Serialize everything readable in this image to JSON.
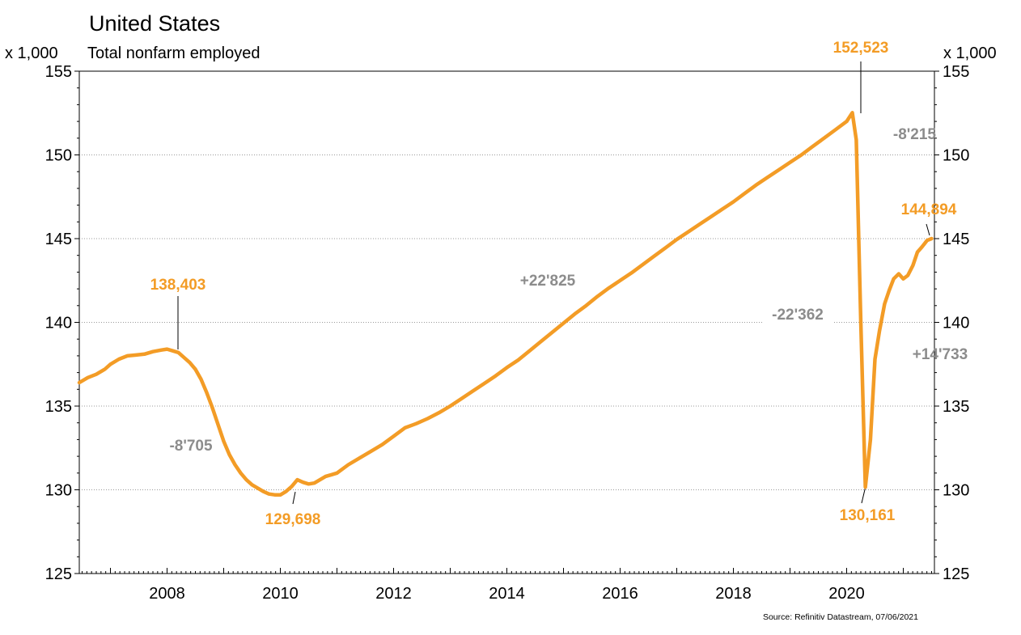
{
  "chart_data": {
    "type": "line",
    "title": "United States",
    "subtitle": "Total nonfarm employed",
    "unit_left": "x 1,000",
    "unit_right": "x 1,000",
    "source": "Source: Refinitiv Datastream, 07/06/2021",
    "ylim": [
      125,
      155
    ],
    "yticks": [
      "125",
      "130",
      "135",
      "140",
      "145",
      "150",
      "155"
    ],
    "xlim": [
      2006.45,
      2021.55
    ],
    "xticks": [
      "2008",
      "2010",
      "2012",
      "2014",
      "2016",
      "2018",
      "2020"
    ],
    "grid": "horizontal-dotted",
    "line_color": "#f39c26",
    "series": [
      {
        "x": [
          2006.45,
          2006.6,
          2006.75,
          2006.9,
          2007.0,
          2007.15,
          2007.3,
          2007.45,
          2007.6,
          2007.75,
          2007.9,
          2008.0,
          2008.1,
          2008.2,
          2008.3,
          2008.4,
          2008.5,
          2008.6,
          2008.7,
          2008.8,
          2008.9,
          2009.0,
          2009.1,
          2009.2,
          2009.3,
          2009.4,
          2009.5,
          2009.6,
          2009.7,
          2009.8,
          2009.9,
          2010.0,
          2010.1,
          2010.2,
          2010.3,
          2010.4,
          2010.5,
          2010.6,
          2010.7,
          2010.8,
          2010.9,
          2011.0,
          2011.2,
          2011.4,
          2011.6,
          2011.8,
          2012.0,
          2012.2,
          2012.4,
          2012.6,
          2012.8,
          2013.0,
          2013.2,
          2013.4,
          2013.6,
          2013.8,
          2014.0,
          2014.2,
          2014.4,
          2014.6,
          2014.8,
          2015.0,
          2015.2,
          2015.4,
          2015.6,
          2015.8,
          2016.0,
          2016.2,
          2016.4,
          2016.6,
          2016.8,
          2017.0,
          2017.2,
          2017.4,
          2017.6,
          2017.8,
          2018.0,
          2018.2,
          2018.4,
          2018.6,
          2018.8,
          2019.0,
          2019.2,
          2019.4,
          2019.6,
          2019.8,
          2020.0,
          2020.1,
          2020.17,
          2020.25,
          2020.33,
          2020.42,
          2020.5,
          2020.58,
          2020.67,
          2020.75,
          2020.83,
          2020.92,
          2021.0,
          2021.08,
          2021.17,
          2021.25,
          2021.33,
          2021.42,
          2021.5
        ],
        "y": [
          136.4,
          136.7,
          136.9,
          137.2,
          137.5,
          137.8,
          138.0,
          138.05,
          138.1,
          138.25,
          138.35,
          138.403,
          138.3,
          138.2,
          137.9,
          137.6,
          137.2,
          136.6,
          135.8,
          134.9,
          133.9,
          132.9,
          132.1,
          131.5,
          131.0,
          130.6,
          130.3,
          130.1,
          129.9,
          129.75,
          129.7,
          129.698,
          129.9,
          130.2,
          130.6,
          130.45,
          130.35,
          130.4,
          130.6,
          130.8,
          130.9,
          131.0,
          131.5,
          131.9,
          132.3,
          132.7,
          133.2,
          133.7,
          133.95,
          134.25,
          134.6,
          135.0,
          135.45,
          135.9,
          136.35,
          136.8,
          137.3,
          137.75,
          138.3,
          138.85,
          139.4,
          139.95,
          140.5,
          141.0,
          141.55,
          142.05,
          142.5,
          142.95,
          143.45,
          143.95,
          144.45,
          144.95,
          145.4,
          145.85,
          146.3,
          146.75,
          147.2,
          147.7,
          148.2,
          148.65,
          149.1,
          149.55,
          150.0,
          150.5,
          151.0,
          151.5,
          152.0,
          152.523,
          150.9,
          140.0,
          130.161,
          133.0,
          137.8,
          139.5,
          141.1,
          141.9,
          142.6,
          142.9,
          142.6,
          142.8,
          143.4,
          144.2,
          144.5,
          144.894,
          145.0
        ]
      }
    ],
    "annotations": [
      {
        "text": "152,523",
        "x": 2020.17,
        "y": 152.523,
        "style": "orange"
      },
      {
        "text": "138,403",
        "x": 2008.0,
        "y": 138.403,
        "style": "orange"
      },
      {
        "text": "129,698",
        "x": 2010.0,
        "y": 129.698,
        "style": "orange"
      },
      {
        "text": "130,161",
        "x": 2020.33,
        "y": 130.161,
        "style": "orange"
      },
      {
        "text": "144,894",
        "x": 2021.42,
        "y": 144.894,
        "style": "orange"
      },
      {
        "text": "-8'215",
        "style": "gray"
      },
      {
        "text": "+22'825",
        "style": "gray"
      },
      {
        "text": "-22'362",
        "style": "gray"
      },
      {
        "text": "+14'733",
        "style": "gray"
      },
      {
        "text": "-8'705",
        "style": "gray"
      }
    ]
  }
}
